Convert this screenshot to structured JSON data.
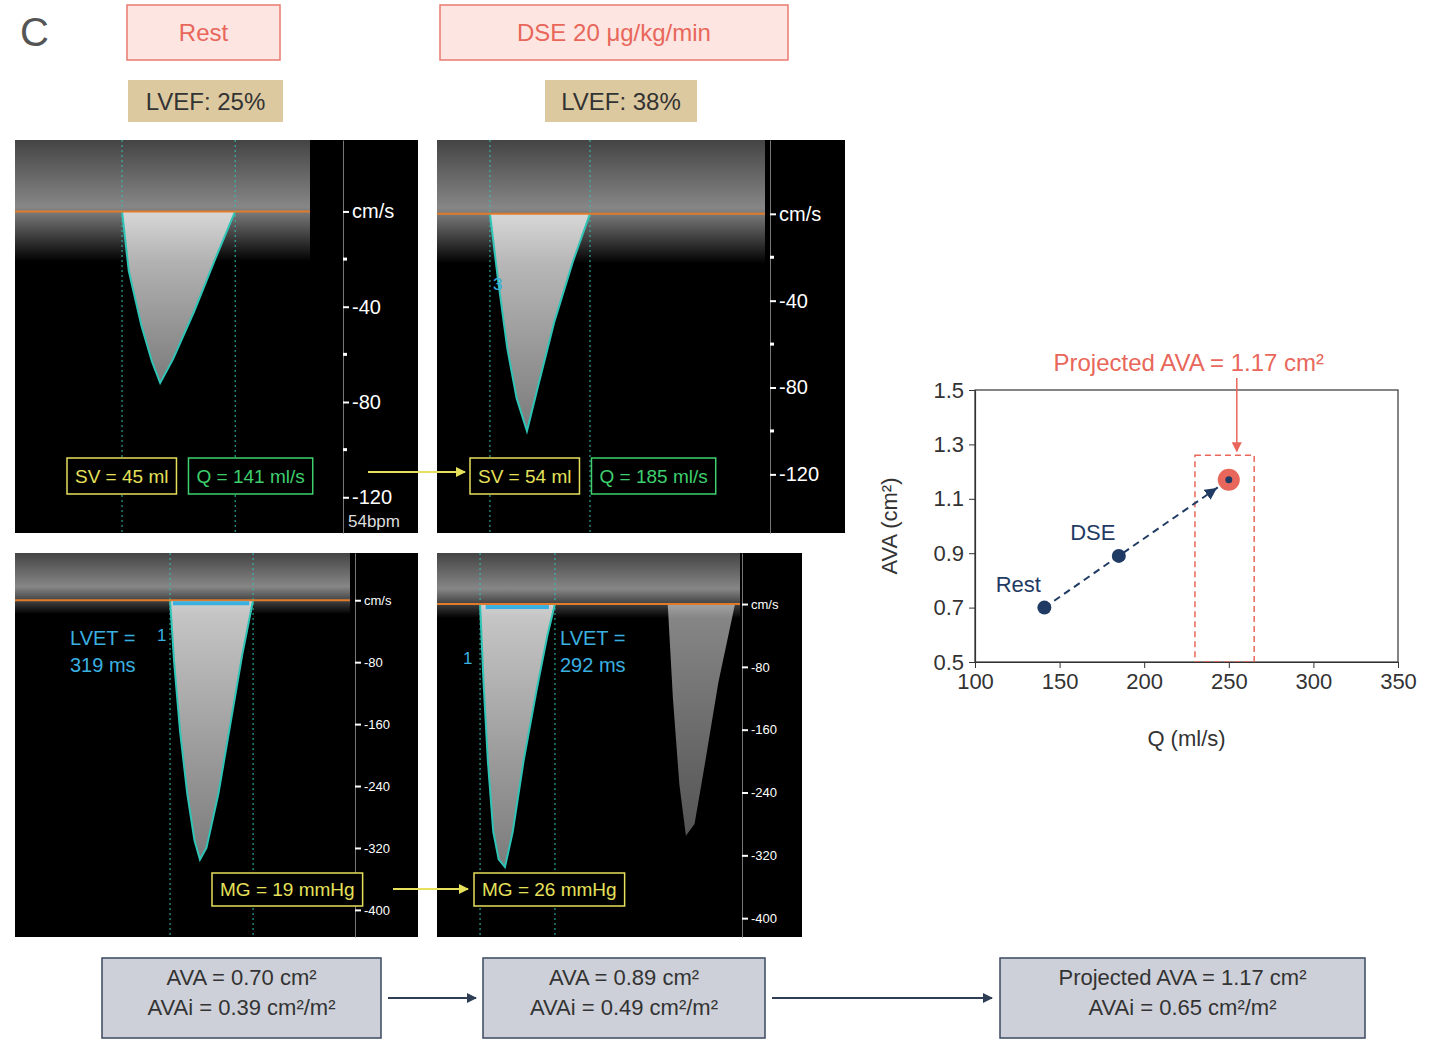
{
  "panel_letter": "C",
  "columns": [
    {
      "header": "Rest",
      "lvef": "LVEF: 25%"
    },
    {
      "header": "DSE 20 μg/kg/min",
      "lvef": "LVEF: 38%"
    }
  ],
  "doppler": [
    {
      "xlim": [
        0,
        1400
      ],
      "ylim": [
        -135,
        30
      ],
      "yticks": [
        {
          "value": 0,
          "label": "cm/s"
        },
        -40,
        -80,
        -120
      ],
      "minor_yticks": [
        -20,
        -60,
        -100
      ],
      "envelopes": [
        {
          "t": [
            508,
            540,
            600,
            650,
            689,
            750,
            850,
            950,
            1045
          ],
          "v": [
            0,
            -25,
            -48,
            -63,
            -72,
            -62,
            -42,
            -20,
            0
          ],
          "traced": true
        }
      ],
      "measurements": [
        {
          "text": "SV = 45 ml",
          "color": "#e6e05a"
        },
        {
          "text": "Q = 141 ml/s",
          "color": "#3ecf6e"
        }
      ],
      "heart_rate": "54bpm"
    },
    {
      "xlim": [
        0,
        1400
      ],
      "ylim": [
        -147,
        34
      ],
      "yticks": [
        {
          "value": 0,
          "label": "cm/s"
        },
        -40,
        -80,
        -120
      ],
      "minor_yticks": [
        -20,
        -60,
        -100
      ],
      "envelopes": [
        {
          "t": [
            226,
            260,
            300,
            340,
            384,
            430,
            500,
            580,
            653
          ],
          "v": [
            0,
            -30,
            -62,
            -85,
            -100,
            -80,
            -50,
            -22,
            0
          ],
          "traced": true
        }
      ],
      "measurements": [
        {
          "text": "SV = 54 ml",
          "color": "#e6e05a"
        },
        {
          "text": "Q = 185 ml/s",
          "color": "#3ecf6e"
        }
      ],
      "marker_label": "3"
    },
    {
      "xlim": [
        0,
        1400
      ],
      "ylim": [
        -435,
        61
      ],
      "yticks": [
        {
          "value": 0,
          "label": "cm/s"
        },
        -80,
        -160,
        -240,
        -320,
        -400
      ],
      "minor_yticks": [],
      "envelopes": [
        {
          "t": [
            648,
            665,
            690,
            720,
            750,
            773,
            800,
            850,
            900,
            950,
            995
          ],
          "v": [
            0,
            -80,
            -170,
            -250,
            -310,
            -335,
            -320,
            -250,
            -160,
            -70,
            0
          ],
          "traced": true
        }
      ],
      "measurements": [
        {
          "text": "MG = 19 mmHg",
          "color": "#e6e05a"
        }
      ],
      "lvet": {
        "label": "LVET = 319 ms",
        "t": [
          660,
          979
        ]
      },
      "marker_label": "1"
    },
    {
      "xlim": [
        0,
        1400
      ],
      "ylim": [
        -424,
        65
      ],
      "yticks": [
        {
          "value": 0,
          "label": "cm/s"
        },
        -80,
        -160,
        -240,
        -320,
        -400
      ],
      "minor_yticks": [],
      "envelopes": [
        {
          "t": [
            199,
            215,
            235,
            260,
            285,
            314,
            350,
            400,
            460,
            510,
            545
          ],
          "v": [
            0,
            -100,
            -200,
            -290,
            -325,
            -335,
            -290,
            -200,
            -110,
            -40,
            0
          ],
          "traced": true
        },
        {
          "t": [
            1066,
            1090,
            1120,
            1150,
            1190,
            1240,
            1300,
            1377
          ],
          "v": [
            0,
            -120,
            -230,
            -295,
            -280,
            -200,
            -100,
            0
          ],
          "traced": false
        }
      ],
      "measurements": [
        {
          "text": "MG = 26 mmHg",
          "color": "#e6e05a"
        }
      ],
      "lvet": {
        "label": "LVET = 292 ms",
        "t": [
          225,
          517
        ]
      },
      "marker_label": "1"
    }
  ],
  "chart_data": {
    "type": "scatter",
    "x": [
      141,
      185,
      250
    ],
    "values": [
      0.7,
      0.89,
      1.17
    ],
    "point_labels": [
      "Rest",
      "DSE",
      null
    ],
    "colors": [
      "#1f3b63",
      "#1f3b63",
      "#e8675a"
    ],
    "x_label": "Q (ml/s)",
    "y_label": "AVA (cm²)",
    "xlim": [
      100,
      350
    ],
    "ylim": [
      0.5,
      1.5
    ],
    "xticks": [
      100,
      150,
      200,
      250,
      300,
      350
    ],
    "yticks": [
      0.5,
      0.7,
      0.9,
      1.1,
      1.3,
      1.5
    ],
    "line_style": "dashed",
    "annotation": "Projected AVA = 1.17 cm²",
    "highlight_x": [
      230,
      265
    ],
    "highlight_y": [
      0.5,
      1.26
    ]
  },
  "results": [
    {
      "lines": [
        "AVA = 0.70 cm²",
        "AVAi = 0.39 cm²/m²"
      ]
    },
    {
      "lines": [
        "AVA = 0.89 cm²",
        "AVAi = 0.49 cm²/m²"
      ]
    },
    {
      "lines": [
        "Projected AVA = 1.17 cm²",
        "AVAi = 0.65 cm²/m²"
      ]
    }
  ]
}
